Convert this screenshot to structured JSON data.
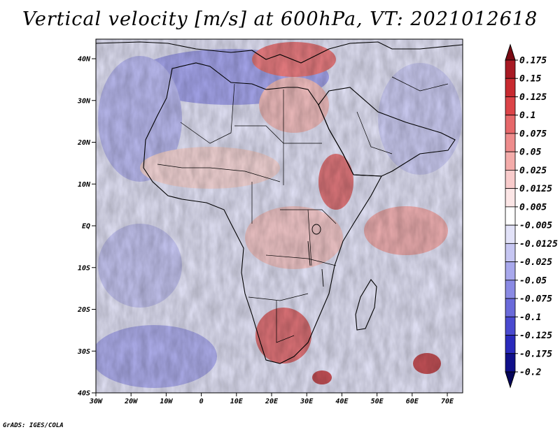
{
  "title": "Vertical velocity [m/s] at 600hPa, VT: 2021012618",
  "credit": "GrADS: IGES/COLA",
  "lat_ticks": [
    "40N",
    "30N",
    "20N",
    "10N",
    "EQ",
    "10S",
    "20S",
    "30S",
    "40S"
  ],
  "lon_ticks": [
    "30W",
    "20W",
    "10W",
    "0",
    "10E",
    "20E",
    "30E",
    "40E",
    "50E",
    "60E",
    "70E"
  ],
  "colorbar": {
    "labels": [
      "0.175",
      "0.15",
      "0.125",
      "0.1",
      "0.075",
      "0.05",
      "0.025",
      "0.0125",
      "0.005",
      "-0.005",
      "-0.0125",
      "-0.025",
      "-0.05",
      "-0.075",
      "-0.1",
      "-0.125",
      "-0.175",
      "-0.2"
    ],
    "colors": [
      "#7a0a14",
      "#a81a24",
      "#c82a30",
      "#dc4448",
      "#e6686a",
      "#ee8c8c",
      "#f4acaa",
      "#f9cccc",
      "#fce6e6",
      "#ffffff",
      "#e2e2f8",
      "#c6c6f2",
      "#a8a8ec",
      "#8a8ae4",
      "#6a6ada",
      "#4a4ad0",
      "#2a2abc",
      "#10108a",
      "#06065a"
    ]
  }
}
